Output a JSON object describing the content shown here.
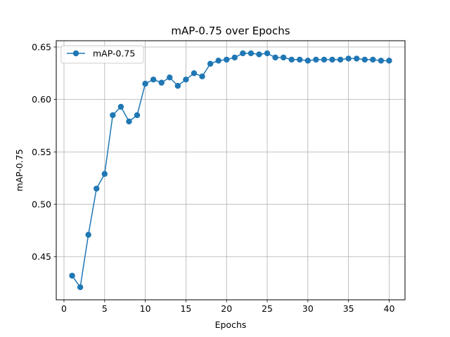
{
  "chart_data": {
    "type": "line",
    "title": "mAP-0.75 over Epochs",
    "xlabel": "Epochs",
    "ylabel": "mAP-0.75",
    "xlim": [
      -0.95,
      41.95
    ],
    "ylim": [
      0.409,
      0.656
    ],
    "xticks": [
      0,
      5,
      10,
      15,
      20,
      25,
      30,
      35,
      40
    ],
    "yticks": [
      0.45,
      0.5,
      0.55,
      0.6,
      0.65
    ],
    "ytick_labels": [
      "0.45",
      "0.50",
      "0.55",
      "0.60",
      "0.65"
    ],
    "grid": true,
    "legend_position": "top-left",
    "series": [
      {
        "name": "mAP-0.75",
        "color": "#1f77b4",
        "marker": "circle",
        "x": [
          1,
          2,
          3,
          4,
          5,
          6,
          7,
          8,
          9,
          10,
          11,
          12,
          13,
          14,
          15,
          16,
          17,
          18,
          19,
          20,
          21,
          22,
          23,
          24,
          25,
          26,
          27,
          28,
          29,
          30,
          31,
          32,
          33,
          34,
          35,
          36,
          37,
          38,
          39,
          40
        ],
        "values": [
          0.432,
          0.421,
          0.471,
          0.515,
          0.529,
          0.585,
          0.593,
          0.579,
          0.585,
          0.615,
          0.619,
          0.616,
          0.621,
          0.613,
          0.619,
          0.625,
          0.622,
          0.634,
          0.637,
          0.638,
          0.64,
          0.644,
          0.644,
          0.643,
          0.644,
          0.64,
          0.64,
          0.638,
          0.638,
          0.637,
          0.638,
          0.638,
          0.638,
          0.638,
          0.639,
          0.639,
          0.638,
          0.638,
          0.637,
          0.637
        ]
      }
    ]
  }
}
